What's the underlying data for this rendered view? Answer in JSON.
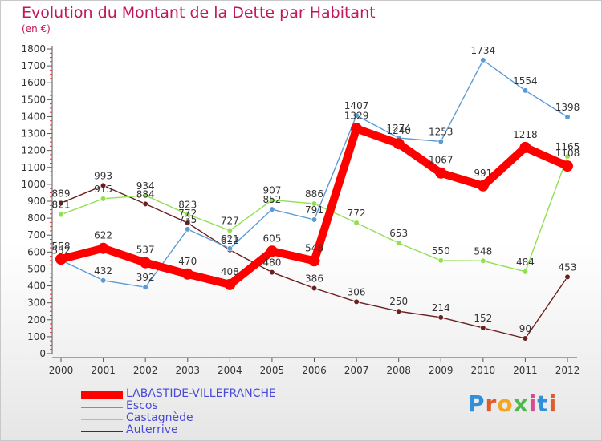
{
  "title": "Evolution du Montant de la Dette par Habitant",
  "unit": "(en €)",
  "logo": {
    "text": "Proxiti"
  },
  "chart_data": {
    "type": "line",
    "title": "Evolution du Montant de la Dette par Habitant",
    "ylabel": "(en €)",
    "x": [
      "2000",
      "2001",
      "2002",
      "2003",
      "2004",
      "2005",
      "2006",
      "2007",
      "2008",
      "2009",
      "2010",
      "2011",
      "2012"
    ],
    "ylim": [
      0,
      1800
    ],
    "yticks": [
      0,
      100,
      200,
      300,
      400,
      500,
      600,
      700,
      800,
      900,
      1000,
      1100,
      1200,
      1300,
      1400,
      1500,
      1600,
      1700,
      1800
    ],
    "grid": false,
    "legend_position": "bottom-left",
    "series": [
      {
        "name": "LABASTIDE-VILLEFRANCHE",
        "color": "#ff0000",
        "values": [
          558,
          622,
          537,
          470,
          408,
          605,
          548,
          1329,
          1240,
          1067,
          991,
          1218,
          1108
        ]
      },
      {
        "name": "Escos",
        "color": "#5b9bd5",
        "values": [
          552,
          432,
          392,
          735,
          621,
          852,
          791,
          1407,
          1274,
          1253,
          1734,
          1554,
          1398
        ]
      },
      {
        "name": "Castagnède",
        "color": "#90e050",
        "values": [
          821,
          915,
          934,
          823,
          727,
          907,
          886,
          772,
          653,
          550,
          548,
          484,
          1165
        ]
      },
      {
        "name": "Auterrive",
        "color": "#6b1f1f",
        "values": [
          889,
          993,
          884,
          772,
          612,
          480,
          386,
          306,
          250,
          214,
          152,
          90,
          453
        ]
      }
    ]
  }
}
